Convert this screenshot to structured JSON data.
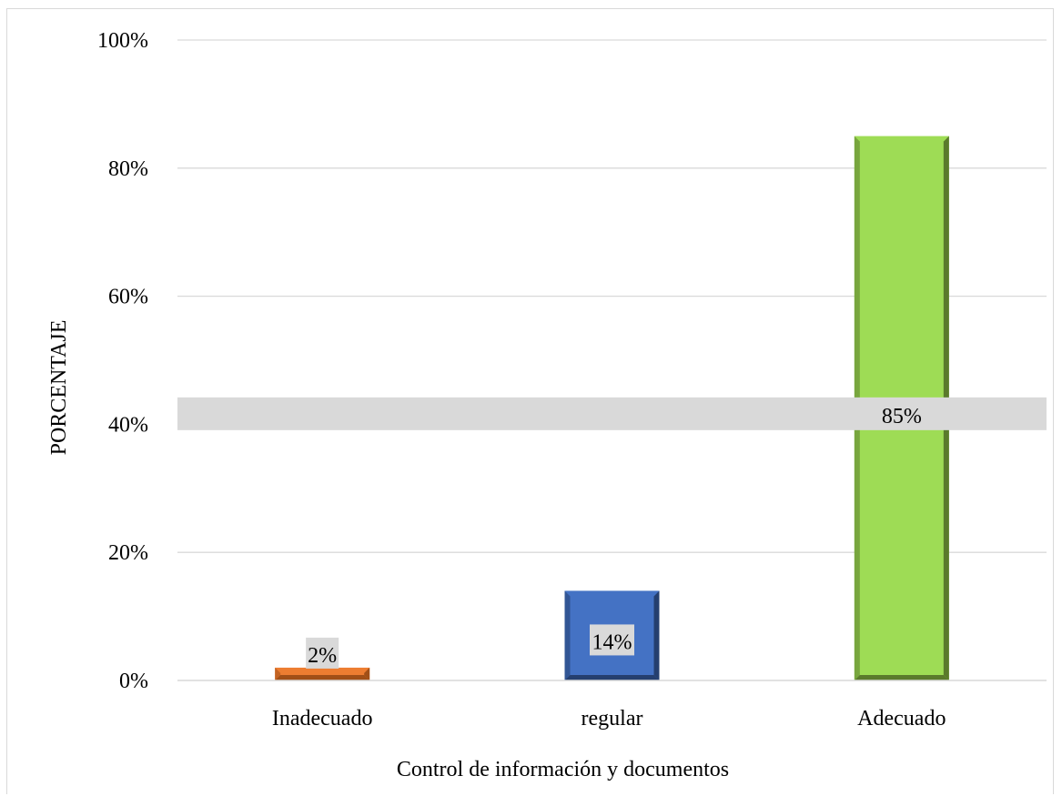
{
  "chart_data": {
    "type": "bar",
    "categories": [
      "Inadecuado",
      "regular",
      "Adecuado"
    ],
    "values": [
      2,
      14,
      85
    ],
    "data_labels": [
      "2%",
      "14%",
      "85%"
    ],
    "colors": [
      "#ed7d31",
      "#4472c4",
      "#9edc55"
    ],
    "side_colors": [
      "#a14f17",
      "#253f6f",
      "#5a7a2c"
    ],
    "xlabel": "Control de información y documentos",
    "ylabel": "PORCENTAJE",
    "ylim": [
      0,
      100
    ],
    "yticks": [
      {
        "value": 0,
        "label": "0%"
      },
      {
        "value": 20,
        "label": "20%"
      },
      {
        "value": 40,
        "label": "40%"
      },
      {
        "value": 60,
        "label": "60%"
      },
      {
        "value": 80,
        "label": "80%"
      },
      {
        "value": 100,
        "label": "100%"
      }
    ],
    "grid": true,
    "legend": "none"
  }
}
